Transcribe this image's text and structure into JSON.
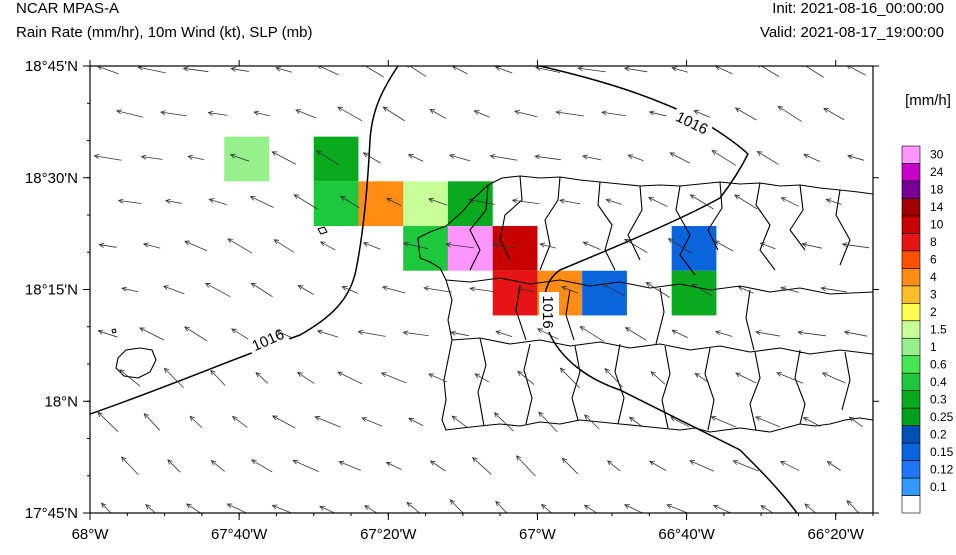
{
  "header": {
    "title": "NCAR MPAS-A",
    "subtitle": "Rain Rate (mm/hr), 10m Wind (kt), SLP (mb)",
    "init": "Init: 2021-08-16_00:00:00",
    "valid": "Valid: 2021-08-17_19:00:00"
  },
  "map": {
    "lon_range": [
      -68.0,
      -66.25
    ],
    "lat_range": [
      17.75,
      18.75
    ],
    "lon_ticks": [
      "68°W",
      "67°40'W",
      "67°20'W",
      "67°W",
      "66°40'W",
      "66°20'W"
    ],
    "lat_ticks": [
      "18°45'N",
      "18°30'N",
      "18°15'N",
      "18°N",
      "17°45'N"
    ],
    "isobar_labels": [
      "1016",
      "1016",
      "1016"
    ]
  },
  "colorbar": {
    "title": "[mm/h]",
    "labels": [
      "30",
      "24",
      "18",
      "14",
      "10",
      "8",
      "6",
      "4",
      "3",
      "2",
      "1.5",
      "1",
      "0.6",
      "0.4",
      "0.3",
      "0.25",
      "0.2",
      "0.15",
      "0.12",
      "0.1"
    ],
    "colors": [
      "#ffffff",
      "#3399ff",
      "#1e78f5",
      "#0a64dc",
      "#0050b4",
      "#00a01e",
      "#0aaa1e",
      "#1ec83c",
      "#46e650",
      "#96f08c",
      "#c8ff96",
      "#ffff50",
      "#ffbe28",
      "#ff8c14",
      "#ff5000",
      "#e61414",
      "#c80000",
      "#a00000",
      "#780096",
      "#c800c8",
      "#ff96ff"
    ]
  },
  "rain_cells": [
    {
      "lon": -67.65,
      "lat": 18.542,
      "value": 1.0
    },
    {
      "lon": -67.45,
      "lat": 18.542,
      "value": 0.3
    },
    {
      "lon": -67.45,
      "lat": 18.442,
      "value": 0.4
    },
    {
      "lon": -67.35,
      "lat": 18.442,
      "value": 4
    },
    {
      "lon": -67.25,
      "lat": 18.442,
      "value": 1.5
    },
    {
      "lon": -67.15,
      "lat": 18.442,
      "value": 0.3
    },
    {
      "lon": -67.25,
      "lat": 18.342,
      "value": 0.4
    },
    {
      "lon": -67.15,
      "lat": 18.342,
      "value": 30
    },
    {
      "lon": -67.05,
      "lat": 18.342,
      "value": 10
    },
    {
      "lon": -67.05,
      "lat": 18.242,
      "value": 8
    },
    {
      "lon": -66.95,
      "lat": 18.242,
      "value": 4
    },
    {
      "lon": -66.85,
      "lat": 18.242,
      "value": 0.15
    },
    {
      "lon": -66.65,
      "lat": 18.342,
      "value": 0.15
    },
    {
      "lon": -66.65,
      "lat": 18.242,
      "value": 0.3
    }
  ]
}
